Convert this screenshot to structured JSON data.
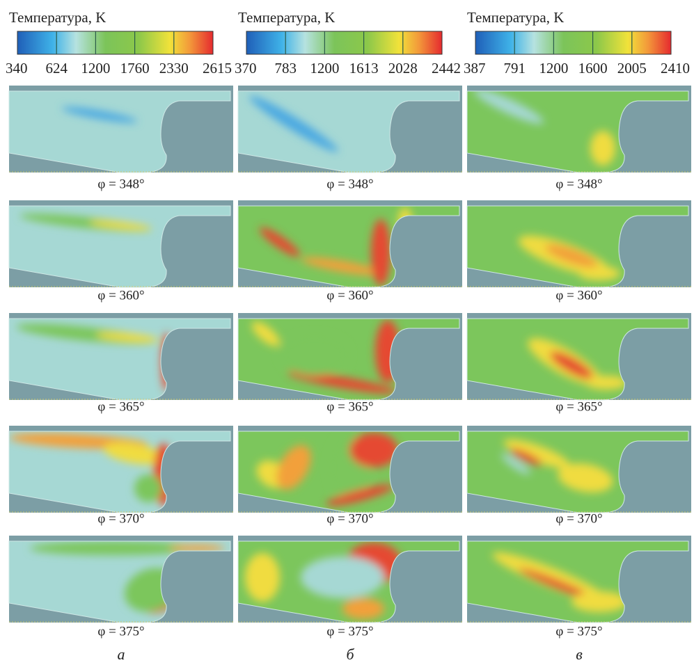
{
  "columns": [
    {
      "label": "а",
      "colorbar": {
        "title": "Температура, K",
        "ticks": [
          340,
          624,
          1200,
          1760,
          2330,
          2615
        ]
      },
      "panels": [
        {
          "caption": "φ = 348°"
        },
        {
          "caption": "φ = 360°"
        },
        {
          "caption": "φ = 365°"
        },
        {
          "caption": "φ = 370°"
        },
        {
          "caption": "φ = 375°"
        }
      ]
    },
    {
      "label": "б",
      "colorbar": {
        "title": "Температура, K",
        "ticks": [
          370,
          783,
          1200,
          1613,
          2028,
          2442
        ]
      },
      "panels": [
        {
          "caption": "φ = 348°"
        },
        {
          "caption": "φ = 360°"
        },
        {
          "caption": "φ = 365°"
        },
        {
          "caption": "φ = 370°"
        },
        {
          "caption": "φ = 375°"
        }
      ]
    },
    {
      "label": "в",
      "colorbar": {
        "title": "Температура, K",
        "ticks": [
          387,
          791,
          1200,
          1600,
          2005,
          2410
        ]
      },
      "panels": [
        {
          "caption": "φ = 348°"
        },
        {
          "caption": "φ = 360°"
        },
        {
          "caption": "φ = 365°"
        },
        {
          "caption": "φ = 370°"
        },
        {
          "caption": "φ = 375°"
        }
      ]
    }
  ]
}
